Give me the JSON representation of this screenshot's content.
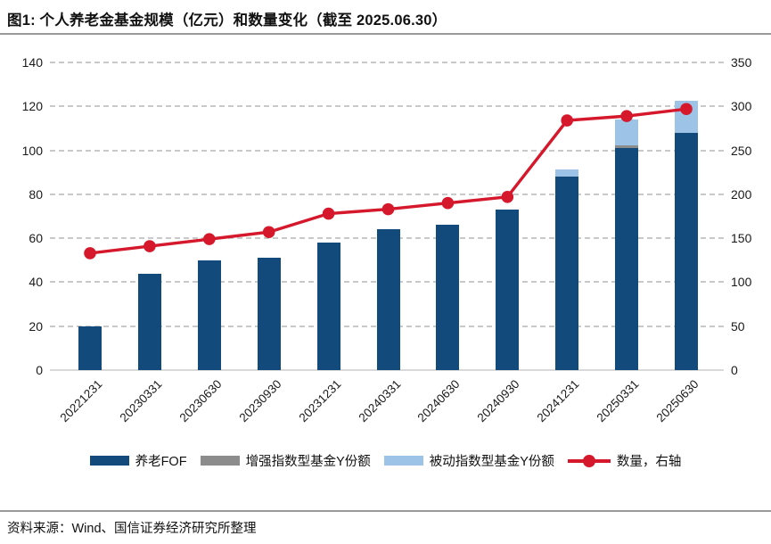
{
  "title": "图1: 个人养老金基金规模（亿元）和数量变化（截至 2025.06.30）",
  "source": "资料来源：Wind、国信证券经济研究所整理",
  "colors": {
    "fof_bar": "#134A7C",
    "enhanced_bar": "#8C8C8C",
    "passive_bar": "#9DC3E6",
    "quantity_line": "#D5182B",
    "gridline": "#C9C9C9",
    "axis_line": "#D9D9D9",
    "rule_line": "#9A9A9A"
  },
  "chart_data": {
    "type": "bar",
    "subtype": "stacked-bars-with-line",
    "title": "个人养老金基金规模（亿元）和数量变化",
    "categories": [
      "20221231",
      "20230331",
      "20230630",
      "20230930",
      "20231231",
      "20240331",
      "20240630",
      "20240930",
      "20241231",
      "20250331",
      "20250630"
    ],
    "series": [
      {
        "name": "养老FOF",
        "type": "bar",
        "color": "#134A7C",
        "values": [
          20,
          44,
          50,
          51,
          58,
          64,
          66,
          73,
          88,
          101,
          108
        ]
      },
      {
        "name": "增强指数型基金Y份额",
        "type": "bar",
        "color": "#8C8C8C",
        "values": [
          0,
          0,
          0,
          0,
          0,
          0,
          0,
          0,
          0,
          1.2,
          0
        ]
      },
      {
        "name": "被动指数型基金Y份额",
        "type": "bar",
        "color": "#9DC3E6",
        "values": [
          0,
          0,
          0,
          0,
          0,
          0,
          0,
          0,
          3.5,
          11.7,
          14.5
        ]
      },
      {
        "name": "数量，右轴",
        "type": "line",
        "axis": "right",
        "color": "#D5182B",
        "values": [
          133,
          141,
          149,
          157,
          178,
          183,
          190,
          197,
          284,
          289,
          297
        ]
      }
    ],
    "left_axis": {
      "min": 0,
      "max": 140,
      "step": 20,
      "ticks": [
        0,
        20,
        40,
        60,
        80,
        100,
        120,
        140
      ]
    },
    "right_axis": {
      "min": 0,
      "max": 350,
      "step": 50,
      "ticks": [
        0,
        50,
        100,
        150,
        200,
        250,
        300,
        350
      ]
    },
    "grid": "dashed-horizontal",
    "legend_position": "bottom"
  }
}
